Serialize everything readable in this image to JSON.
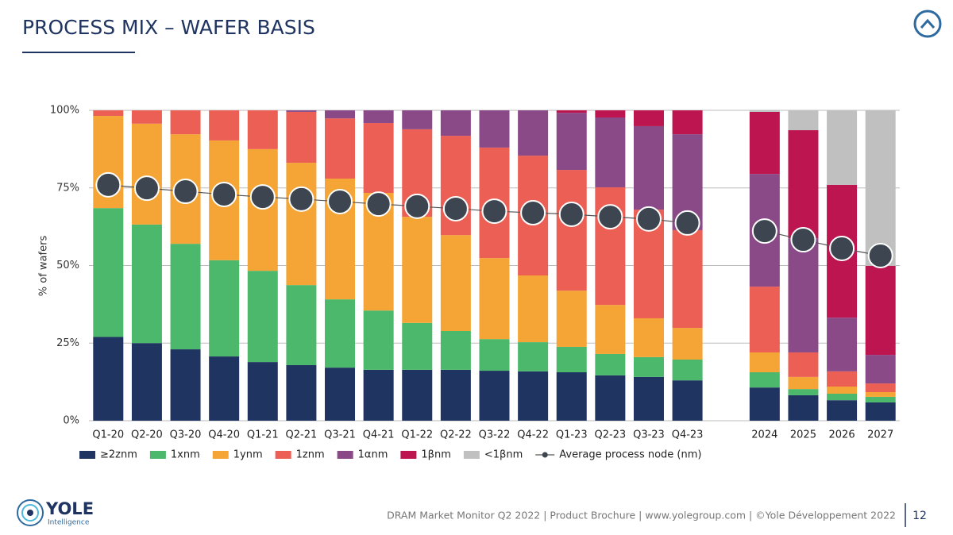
{
  "header": {
    "title": "PROCESS MIX – WAFER BASIS"
  },
  "chart_data": {
    "type": "bar",
    "stacked": true,
    "y_label": "% of wafers",
    "categories": [
      "Q1-20",
      "Q2-20",
      "Q3-20",
      "Q4-20",
      "Q1-21",
      "Q2-21",
      "Q3-21",
      "Q4-21",
      "Q1-22",
      "Q2-22",
      "Q3-22",
      "Q4-22",
      "Q1-23",
      "Q2-23",
      "Q3-23",
      "Q4-23",
      null,
      "2024",
      "2025",
      "2026",
      "2027"
    ],
    "ylim": [
      0,
      100
    ],
    "yticks": [
      {
        "value": 0,
        "label": "0%"
      },
      {
        "value": 25,
        "label": "25%"
      },
      {
        "value": 50,
        "label": "50%"
      },
      {
        "value": 75,
        "label": "75%"
      },
      {
        "value": 100,
        "label": "100%"
      }
    ],
    "grid": true,
    "series": [
      {
        "name": "≥2znm",
        "color": "#1f3461",
        "values": [
          27,
          25,
          23,
          20.7,
          18.9,
          17.9,
          17.1,
          16.4,
          16.4,
          16.4,
          16.1,
          15.9,
          15.6,
          14.6,
          14.1,
          13,
          null,
          10.7,
          8.2,
          6.6,
          5.9
        ]
      },
      {
        "name": "1xnm",
        "color": "#4cb86b",
        "values": [
          41.5,
          38.2,
          34,
          31,
          29.4,
          25.8,
          22,
          19.1,
          15.1,
          12.5,
          10.2,
          9.4,
          8.2,
          6.9,
          6.4,
          6.7,
          null,
          4.9,
          2,
          2.1,
          1.8
        ]
      },
      {
        "name": "1ynm",
        "color": "#f5a535",
        "values": [
          29.7,
          32.5,
          35.3,
          38.6,
          39.2,
          39.4,
          38.9,
          37.9,
          34.2,
          30.9,
          26.1,
          21.5,
          18.1,
          15.8,
          12.5,
          10.2,
          null,
          6.4,
          3.9,
          2.3,
          1.5
        ]
      },
      {
        "name": "1znm",
        "color": "#ec5f55",
        "values": [
          1.8,
          4.3,
          7.7,
          9.7,
          12.5,
          16.4,
          19.4,
          22.5,
          28.2,
          32,
          35.6,
          38.6,
          38.9,
          37.9,
          35,
          31.5,
          null,
          21.2,
          7.9,
          4.9,
          2.8
        ]
      },
      {
        "name": "1αnm",
        "color": "#8a4a88",
        "values": [
          0,
          0,
          0,
          0,
          0,
          0.5,
          2.6,
          4.1,
          6.1,
          8.2,
          12,
          14.6,
          18.4,
          22.5,
          26.9,
          30.9,
          null,
          36.3,
          36.8,
          17.3,
          9.2
        ]
      },
      {
        "name": "1βnm",
        "color": "#bd1550",
        "values": [
          0,
          0,
          0,
          0,
          0,
          0,
          0,
          0,
          0,
          0,
          0,
          0,
          0.8,
          2.3,
          5.1,
          7.7,
          null,
          20,
          34.8,
          42.8,
          28.7
        ]
      },
      {
        "name": "<1βnm",
        "color": "#c0c0c0",
        "values": [
          0,
          0,
          0,
          0,
          0,
          0,
          0,
          0,
          0,
          0,
          0,
          0,
          0,
          0,
          0,
          0,
          null,
          0.5,
          6.4,
          24,
          50.1
        ]
      }
    ],
    "line": {
      "name": "Average process node (nm)",
      "color": "#555555",
      "marker_color": "#3d4650",
      "values": [
        76,
        74.9,
        73.9,
        72.9,
        72.1,
        71.4,
        70.6,
        69.8,
        69.1,
        68.3,
        67.5,
        67,
        66.5,
        65.7,
        65,
        63.7,
        null,
        61.1,
        58.3,
        55.5,
        53.2
      ]
    }
  },
  "footer": {
    "text": "DRAM Market Monitor Q2 2022 | Product Brochure | www.yolegroup.com | ©Yole Développement 2022",
    "page": "12"
  },
  "logo": {
    "name": "YOLE",
    "sub": "Intelligence"
  }
}
